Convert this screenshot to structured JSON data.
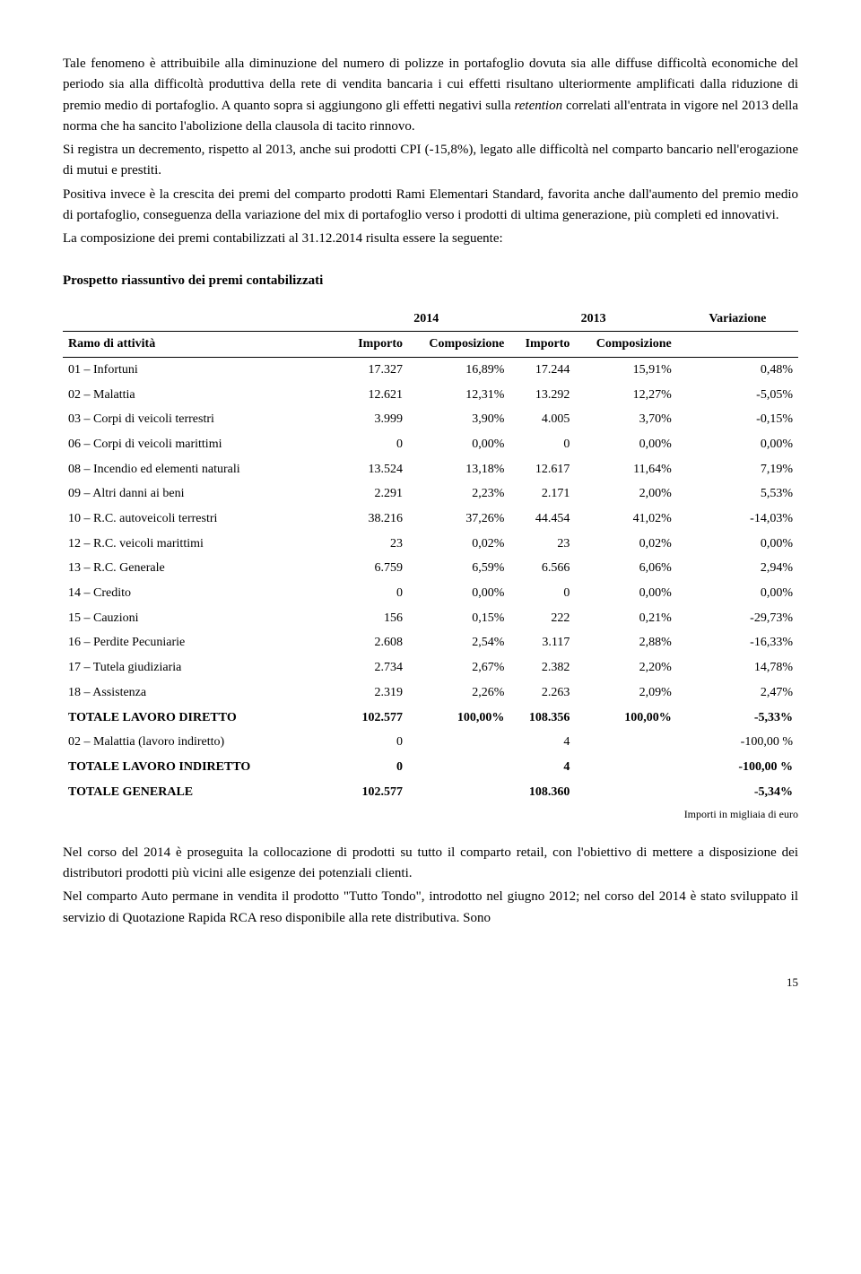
{
  "paragraphs": {
    "p1a": "Tale fenomeno è attribuibile alla diminuzione del numero di polizze in portafoglio dovuta sia alle diffuse difficoltà economiche del periodo sia alla difficoltà produttiva della rete di vendita bancaria i cui effetti risultano ulteriormente amplificati dalla riduzione di premio medio di portafoglio. A quanto sopra si aggiungono gli effetti negativi sulla ",
    "p1_italic": "retention",
    "p1b": " correlati all'entrata in vigore nel 2013 della norma che ha sancito l'abolizione della clausola di tacito rinnovo.",
    "p2": "Si registra un decremento, rispetto al 2013, anche sui prodotti CPI (-15,8%), legato alle difficoltà nel comparto bancario nell'erogazione di mutui e prestiti.",
    "p3": "Positiva invece è la crescita dei premi del comparto prodotti Rami Elementari Standard, favorita anche dall'aumento del premio medio di portafoglio, conseguenza della variazione del mix di portafoglio verso i prodotti di ultima generazione, più completi ed innovativi.",
    "p4": "La composizione dei premi contabilizzati al 31.12.2014 risulta essere la seguente:",
    "p5": "Nel corso del 2014 è proseguita la collocazione di prodotti su tutto il comparto retail, con l'obiettivo di mettere a disposizione dei distributori prodotti più vicini alle esigenze dei potenziali clienti.",
    "p6": "Nel comparto Auto permane in vendita il prodotto \"Tutto Tondo\", introdotto nel giugno 2012; nel corso del 2014 è stato sviluppato il servizio di Quotazione Rapida RCA reso disponibile alla rete distributiva. Sono"
  },
  "section_title": "Prospetto riassuntivo dei premi contabilizzati",
  "table": {
    "year1": "2014",
    "year2": "2013",
    "variation": "Variazione",
    "col_activity": "Ramo di attività",
    "col_importo": "Importo",
    "col_comp": "Composizione",
    "rows": [
      {
        "label": "01 – Infortuni",
        "imp1": "17.327",
        "comp1": "16,89%",
        "imp2": "17.244",
        "comp2": "15,91%",
        "var": "0,48%"
      },
      {
        "label": "02 – Malattia",
        "imp1": "12.621",
        "comp1": "12,31%",
        "imp2": "13.292",
        "comp2": "12,27%",
        "var": "-5,05%"
      },
      {
        "label": "03 – Corpi di veicoli terrestri",
        "imp1": "3.999",
        "comp1": "3,90%",
        "imp2": "4.005",
        "comp2": "3,70%",
        "var": "-0,15%"
      },
      {
        "label": "06 – Corpi di veicoli marittimi",
        "imp1": "0",
        "comp1": "0,00%",
        "imp2": "0",
        "comp2": "0,00%",
        "var": "0,00%"
      },
      {
        "label": "08 – Incendio ed elementi naturali",
        "imp1": "13.524",
        "comp1": "13,18%",
        "imp2": "12.617",
        "comp2": "11,64%",
        "var": "7,19%"
      },
      {
        "label": "09 – Altri danni ai beni",
        "imp1": "2.291",
        "comp1": "2,23%",
        "imp2": "2.171",
        "comp2": "2,00%",
        "var": "5,53%"
      },
      {
        "label": "10 – R.C. autoveicoli terrestri",
        "imp1": "38.216",
        "comp1": "37,26%",
        "imp2": "44.454",
        "comp2": "41,02%",
        "var": "-14,03%"
      },
      {
        "label": "12 –  R.C. veicoli marittimi",
        "imp1": "23",
        "comp1": "0,02%",
        "imp2": "23",
        "comp2": "0,02%",
        "var": "0,00%"
      },
      {
        "label": "13 – R.C. Generale",
        "imp1": "6.759",
        "comp1": "6,59%",
        "imp2": "6.566",
        "comp2": "6,06%",
        "var": "2,94%"
      },
      {
        "label": "14 – Credito",
        "imp1": "0",
        "comp1": "0,00%",
        "imp2": "0",
        "comp2": "0,00%",
        "var": "0,00%"
      },
      {
        "label": "15 – Cauzioni",
        "imp1": "156",
        "comp1": "0,15%",
        "imp2": "222",
        "comp2": "0,21%",
        "var": "-29,73%"
      },
      {
        "label": "16 – Perdite Pecuniarie",
        "imp1": "2.608",
        "comp1": "2,54%",
        "imp2": "3.117",
        "comp2": "2,88%",
        "var": "-16,33%"
      },
      {
        "label": "17 – Tutela giudiziaria",
        "imp1": "2.734",
        "comp1": "2,67%",
        "imp2": "2.382",
        "comp2": "2,20%",
        "var": "14,78%"
      },
      {
        "label": "18 – Assistenza",
        "imp1": "2.319",
        "comp1": "2,26%",
        "imp2": "2.263",
        "comp2": "2,09%",
        "var": "2,47%"
      }
    ],
    "total_diretto": {
      "label": "TOTALE LAVORO DIRETTO",
      "imp1": "102.577",
      "comp1": "100,00%",
      "imp2": "108.356",
      "comp2": "100,00%",
      "var": "-5,33%"
    },
    "malattia_ind": {
      "label": "02 – Malattia (lavoro indiretto)",
      "imp1": "0",
      "comp1": "",
      "imp2": "4",
      "comp2": "",
      "var": "-100,00 %"
    },
    "total_indiretto": {
      "label": "TOTALE LAVORO INDIRETTO",
      "imp1": "0",
      "comp1": "",
      "imp2": "4",
      "comp2": "",
      "var": "-100,00 %"
    },
    "total_generale": {
      "label": "TOTALE GENERALE",
      "imp1": "102.577",
      "comp1": "",
      "imp2": "108.360",
      "comp2": "",
      "var": "-5,34%"
    },
    "footnote": "Importi in migliaia di euro"
  },
  "page_number": "15"
}
